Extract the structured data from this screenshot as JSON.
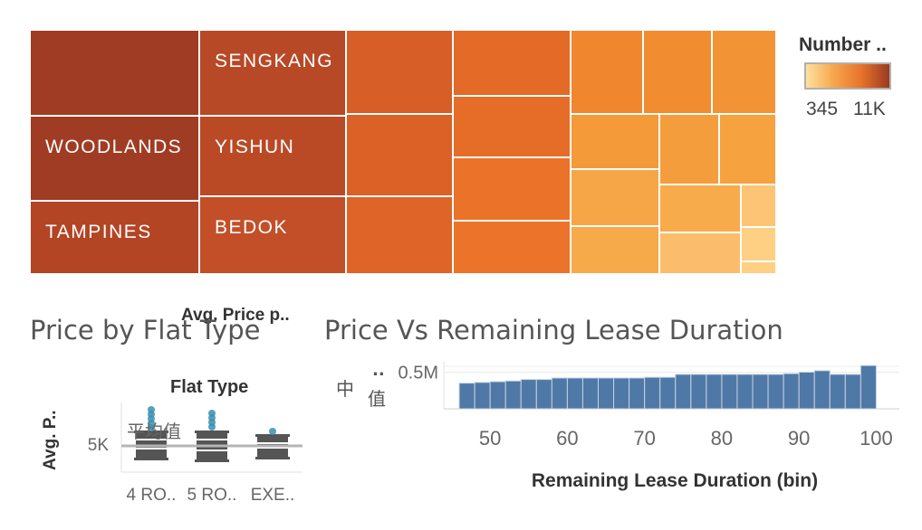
{
  "chart_data": [
    {
      "type": "treemap",
      "legend": {
        "title": "Number ..",
        "min_label": "345",
        "max_label": "11K"
      },
      "color_scale": {
        "min": "#fde1a0",
        "mid": "#ee7c2c",
        "max": "#a03c23"
      },
      "cells": [
        {
          "name": "",
          "label": "",
          "color": "#a03c23"
        },
        {
          "name": "WOODLANDS",
          "label": "WOODLANDS",
          "color": "#a03c23"
        },
        {
          "name": "TAMPINES",
          "label": "TAMPINES",
          "color": "#b34424"
        },
        {
          "name": "SENGKANG",
          "label": "SENGKANG",
          "color": "#b84926"
        },
        {
          "name": "YISHUN",
          "label": "YISHUN",
          "color": "#ba4a26"
        },
        {
          "name": "BEDOK",
          "label": "BEDOK",
          "color": "#c24f27"
        },
        {
          "name": "",
          "label": "",
          "color": "#d75e27"
        },
        {
          "name": "",
          "label": "",
          "color": "#db6126"
        },
        {
          "name": "",
          "label": "",
          "color": "#de6427"
        },
        {
          "name": "",
          "label": "",
          "color": "#e36a27"
        },
        {
          "name": "",
          "label": "",
          "color": "#e66d28"
        },
        {
          "name": "",
          "label": "",
          "color": "#ea7229"
        },
        {
          "name": "",
          "label": "",
          "color": "#ec742a"
        },
        {
          "name": "",
          "label": "",
          "color": "#f0872f"
        },
        {
          "name": "",
          "label": "",
          "color": "#f28c31"
        },
        {
          "name": "",
          "label": "",
          "color": "#f29435"
        },
        {
          "name": "",
          "label": "",
          "color": "#f49a39"
        },
        {
          "name": "",
          "label": "",
          "color": "#f49d3c"
        },
        {
          "name": "",
          "label": "",
          "color": "#f5a23f"
        },
        {
          "name": "",
          "label": "",
          "color": "#f6a646"
        },
        {
          "name": "",
          "label": "",
          "color": "#f6aa49"
        },
        {
          "name": "",
          "label": "",
          "color": "#f7ab4b"
        },
        {
          "name": "",
          "label": "",
          "color": "#fbbd6b"
        },
        {
          "name": "",
          "label": "",
          "color": "#fcc474"
        },
        {
          "name": "",
          "label": "",
          "color": "#fdd084"
        }
      ]
    },
    {
      "type": "box",
      "title": "Price by Flat Type",
      "overlap_label": "Avg. Price p..",
      "column_header": "Flat Type",
      "ylabel": "Avg. P..",
      "y_ticks": [
        "5K"
      ],
      "reference_label": "平均值",
      "categories": [
        "4 RO..",
        "5 RO..",
        "EXE.."
      ],
      "box_color": "#555555",
      "dot_color": "#3a8fb0",
      "reference_color": "#b0b0b0"
    },
    {
      "type": "bar",
      "title": "Price Vs Remaining Lease Duration",
      "xlabel": "Remaining Lease Duration (bin)",
      "ylabel_chars": [
        "中",
        "值",
        ".."
      ],
      "y_ticks": [
        {
          "label": "0.5M",
          "value": 0.5
        }
      ],
      "x_ticks": [
        50,
        60,
        70,
        80,
        90,
        100
      ],
      "bin_width": 2,
      "xlim": [
        44,
        103
      ],
      "ylim": [
        0,
        0.58
      ],
      "bar_color": "#4e79a7",
      "bar_border": "#c6d2e1",
      "x": [
        47,
        49,
        51,
        53,
        55,
        57,
        59,
        61,
        63,
        65,
        67,
        69,
        71,
        73,
        75,
        77,
        79,
        81,
        83,
        85,
        87,
        89,
        91,
        93,
        95,
        97,
        99
      ],
      "values": [
        0.35,
        0.36,
        0.37,
        0.38,
        0.4,
        0.4,
        0.42,
        0.42,
        0.42,
        0.42,
        0.42,
        0.42,
        0.43,
        0.43,
        0.47,
        0.47,
        0.47,
        0.47,
        0.47,
        0.47,
        0.47,
        0.48,
        0.5,
        0.52,
        0.47,
        0.47,
        0.59
      ]
    }
  ]
}
